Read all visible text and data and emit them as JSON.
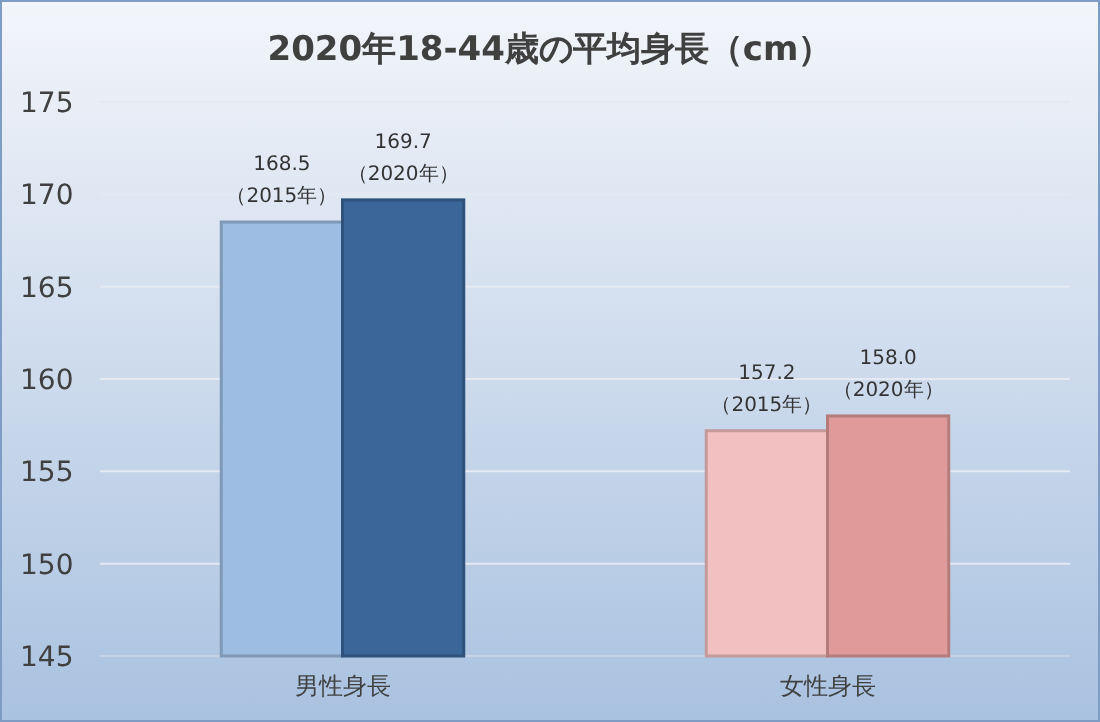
{
  "chart_data": {
    "type": "bar",
    "title": "2020年18-44歳の平均身長（cm）",
    "categories": [
      "男性身長",
      "女性身長"
    ],
    "series": [
      {
        "colors": [
          "#9dbde3",
          "#f2c0c0"
        ],
        "values": [
          168.5,
          157.2
        ],
        "value_labels": [
          "168.5\n（2015年）",
          "157.2\n（2015年）"
        ]
      },
      {
        "colors": [
          "#3a6699",
          "#e09a9a"
        ],
        "values": [
          169.7,
          158.0
        ],
        "value_labels": [
          "169.7\n（2020年）",
          "158.0\n（2020年）"
        ]
      }
    ],
    "ylim": [
      145,
      175
    ],
    "yticks": [
      145,
      150,
      155,
      160,
      165,
      170,
      175
    ],
    "grid": "y"
  }
}
